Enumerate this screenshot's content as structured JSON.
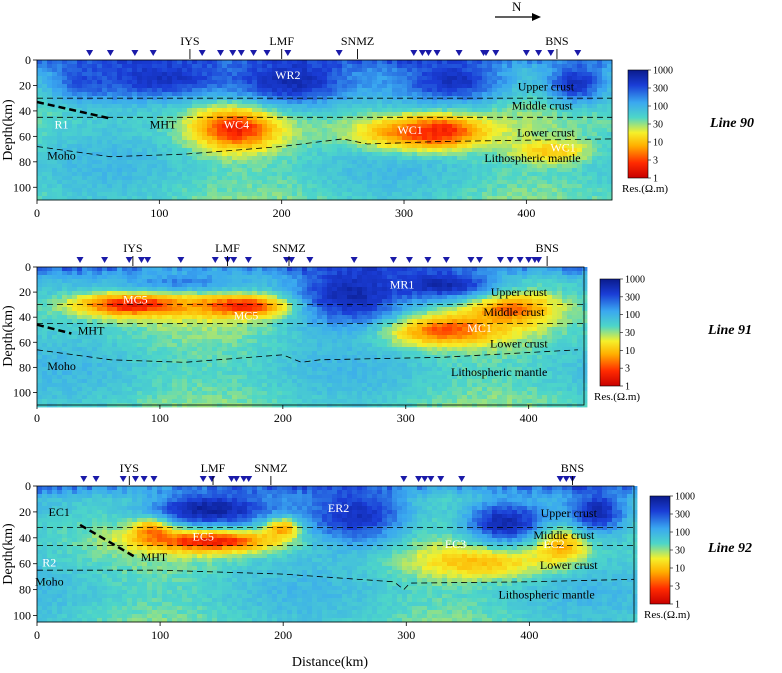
{
  "north_label": "N",
  "x_axis_label": "Distance(km)",
  "y_axis_label": "Depth(km)",
  "colorbar_unit": "Res.(Ω.m)",
  "colorbar_ticks": [
    "1000",
    "300",
    "100",
    "30",
    "10",
    "3",
    "1"
  ],
  "colors": {
    "station_marker": "#1a1aa8",
    "cmap": [
      "#c80000",
      "#ff2a00",
      "#ffb000",
      "#f5f02a",
      "#4dd6c8",
      "#3aa8f0",
      "#1a3dd6",
      "#0a1b8c"
    ]
  },
  "chart_data": [
    {
      "type": "heatmap",
      "title": "Line 90",
      "x_range": [
        0,
        470
      ],
      "y_range": [
        0,
        110
      ],
      "x_ticks": [
        "0",
        "100",
        "200",
        "300",
        "400"
      ],
      "y_ticks": [
        "0",
        "20",
        "40",
        "60",
        "80",
        "100"
      ],
      "stations_km": [
        43,
        60,
        80,
        95,
        135,
        150,
        160,
        167,
        177,
        188,
        205,
        247,
        308,
        315,
        320,
        327,
        345,
        365,
        367,
        375,
        400,
        410,
        420,
        442
      ],
      "boundaries": [
        {
          "name": "upper-middle",
          "points": [
            [
              0,
              30
            ],
            [
              470,
              30
            ]
          ]
        },
        {
          "name": "middle-lower",
          "points": [
            [
              0,
              45
            ],
            [
              470,
              45
            ]
          ]
        },
        {
          "name": "moho",
          "points": [
            [
              0,
              68
            ],
            [
              60,
              76
            ],
            [
              120,
              74
            ],
            [
              200,
              68
            ],
            [
              250,
              62
            ],
            [
              270,
              66
            ],
            [
              330,
              64
            ],
            [
              400,
              63
            ],
            [
              470,
              62
            ]
          ]
        },
        {
          "name": "mht",
          "points": [
            [
              0,
              33
            ],
            [
              60,
              46
            ]
          ]
        }
      ],
      "markers": [
        {
          "label": "IYS",
          "km": 125
        },
        {
          "label": "LMF",
          "km": 200
        },
        {
          "label": "SNMZ",
          "km": 262
        },
        {
          "label": "BNS",
          "km": 425
        }
      ],
      "labels": [
        {
          "text": "WR2",
          "km": 205,
          "depth": 15,
          "color": "#ffffff"
        },
        {
          "text": "R1",
          "km": 20,
          "depth": 54,
          "color": "#ffffff"
        },
        {
          "text": "MHT",
          "km": 103,
          "depth": 54,
          "color": "#000000"
        },
        {
          "text": "WC4",
          "km": 163,
          "depth": 54,
          "color": "#ffffff"
        },
        {
          "text": "WC1",
          "km": 305,
          "depth": 58,
          "color": "#ffffff"
        },
        {
          "text": "WC1",
          "km": 430,
          "depth": 72,
          "color": "#ffffff"
        },
        {
          "text": "Upper crust",
          "km": 416,
          "depth": 24,
          "color": "#000000"
        },
        {
          "text": "Middle crust",
          "km": 413,
          "depth": 39,
          "color": "#000000"
        },
        {
          "text": "Lower crust",
          "km": 416,
          "depth": 60,
          "color": "#000000"
        },
        {
          "text": "Moho",
          "km": 20,
          "depth": 78,
          "color": "#000000"
        },
        {
          "text": "Lithospheric mantle",
          "km": 405,
          "depth": 80,
          "color": "#000000"
        }
      ],
      "anomalies": [
        {
          "km": 163,
          "depth": 53,
          "rx": 38,
          "ry": 20,
          "log": 0.25
        },
        {
          "km": 313,
          "depth": 57,
          "rx": 62,
          "ry": 16,
          "log": 0.55
        },
        {
          "km": 330,
          "depth": 55,
          "rx": 30,
          "ry": 12,
          "log": 0.35
        },
        {
          "km": 420,
          "depth": 72,
          "rx": 34,
          "ry": 10,
          "log": 1.0
        },
        {
          "km": 100,
          "depth": 14,
          "rx": 80,
          "ry": 20,
          "log": 2.7
        },
        {
          "km": 208,
          "depth": 16,
          "rx": 60,
          "ry": 24,
          "log": 2.8
        },
        {
          "km": 340,
          "depth": 16,
          "rx": 55,
          "ry": 22,
          "log": 2.7
        },
        {
          "km": 440,
          "depth": 18,
          "rx": 30,
          "ry": 20,
          "log": 2.7
        },
        {
          "km": 40,
          "depth": 14,
          "rx": 30,
          "ry": 18,
          "log": 2.5
        }
      ]
    },
    {
      "type": "heatmap",
      "title": "Line 91",
      "x_range": [
        0,
        445
      ],
      "y_range": [
        0,
        110
      ],
      "x_ticks": [
        "0",
        "100",
        "200",
        "300",
        "400"
      ],
      "y_ticks": [
        "0",
        "20",
        "40",
        "60",
        "80",
        "100"
      ],
      "stations_km": [
        35,
        55,
        75,
        85,
        90,
        117,
        145,
        155,
        160,
        172,
        203,
        207,
        222,
        258,
        290,
        303,
        318,
        333,
        353,
        360,
        377,
        385,
        393,
        400,
        405,
        408
      ],
      "boundaries": [
        {
          "name": "upper-middle",
          "points": [
            [
              0,
              30
            ],
            [
              445,
              30
            ]
          ]
        },
        {
          "name": "middle-lower",
          "points": [
            [
              0,
              45
            ],
            [
              445,
              45
            ]
          ]
        },
        {
          "name": "moho",
          "points": [
            [
              0,
              66
            ],
            [
              60,
              74
            ],
            [
              120,
              76
            ],
            [
              200,
              70
            ],
            [
              215,
              76
            ],
            [
              230,
              74
            ],
            [
              330,
              72
            ],
            [
              440,
              66
            ]
          ]
        },
        {
          "name": "mht",
          "points": [
            [
              0,
              46
            ],
            [
              28,
              53
            ]
          ]
        }
      ],
      "markers": [
        {
          "label": "IYS",
          "km": 78
        },
        {
          "label": "LMF",
          "km": 155
        },
        {
          "label": "SNMZ",
          "km": 205
        },
        {
          "label": "BNS",
          "km": 415
        }
      ],
      "labels": [
        {
          "text": "MR1",
          "km": 297,
          "depth": 17,
          "color": "#ffffff"
        },
        {
          "text": "MC5",
          "km": 80,
          "depth": 29,
          "color": "#ffffff"
        },
        {
          "text": "MC5",
          "km": 170,
          "depth": 42,
          "color": "#ffffff"
        },
        {
          "text": "MC1",
          "km": 360,
          "depth": 52,
          "color": "#ffffff"
        },
        {
          "text": "MHT",
          "km": 44,
          "depth": 54,
          "color": "#000000"
        },
        {
          "text": "Upper crust",
          "km": 392,
          "depth": 23,
          "color": "#000000"
        },
        {
          "text": "Middle crust",
          "km": 388,
          "depth": 39,
          "color": "#000000"
        },
        {
          "text": "Lower crust",
          "km": 392,
          "depth": 64,
          "color": "#000000"
        },
        {
          "text": "Moho",
          "km": 20,
          "depth": 82,
          "color": "#000000"
        },
        {
          "text": "Lithospheric mantle",
          "km": 376,
          "depth": 87,
          "color": "#000000"
        }
      ],
      "anomalies": [
        {
          "km": 78,
          "depth": 30,
          "rx": 55,
          "ry": 11,
          "log": 0.25
        },
        {
          "km": 170,
          "depth": 31,
          "rx": 48,
          "ry": 10,
          "log": 0.2
        },
        {
          "km": 330,
          "depth": 50,
          "rx": 55,
          "ry": 14,
          "log": 0.45
        },
        {
          "km": 385,
          "depth": 33,
          "rx": 40,
          "ry": 14,
          "log": 0.55
        },
        {
          "km": 255,
          "depth": 22,
          "rx": 55,
          "ry": 30,
          "log": 2.8
        },
        {
          "km": 330,
          "depth": 14,
          "rx": 55,
          "ry": 14,
          "log": 2.8
        },
        {
          "km": 120,
          "depth": 12,
          "rx": 70,
          "ry": 9,
          "log": 2.3
        }
      ]
    },
    {
      "type": "heatmap",
      "title": "Line 92",
      "x_range": [
        0,
        485
      ],
      "y_range": [
        0,
        105
      ],
      "x_ticks": [
        "0",
        "100",
        "200",
        "300",
        "400"
      ],
      "y_ticks": [
        "0",
        "20",
        "40",
        "60",
        "80",
        "100"
      ],
      "stations_km": [
        38,
        48,
        70,
        80,
        87,
        95,
        135,
        142,
        158,
        162,
        168,
        172,
        298,
        310,
        315,
        320,
        328,
        345,
        425,
        430,
        435
      ],
      "boundaries": [
        {
          "name": "upper-middle",
          "points": [
            [
              0,
              32
            ],
            [
              485,
              32
            ]
          ]
        },
        {
          "name": "middle-lower",
          "points": [
            [
              0,
              46
            ],
            [
              485,
              46
            ]
          ]
        },
        {
          "name": "moho",
          "points": [
            [
              0,
              65
            ],
            [
              100,
              65
            ],
            [
              200,
              68
            ],
            [
              290,
              74
            ],
            [
              298,
              80
            ],
            [
              303,
              75
            ],
            [
              400,
              74
            ],
            [
              485,
              72
            ]
          ]
        },
        {
          "name": "mht",
          "points": [
            [
              35,
              30
            ],
            [
              80,
              55
            ]
          ]
        }
      ],
      "markers": [
        {
          "label": "IYS",
          "km": 75
        },
        {
          "label": "LMF",
          "km": 143
        },
        {
          "label": "SNMZ",
          "km": 190
        },
        {
          "label": "BNS",
          "km": 435
        }
      ],
      "labels": [
        {
          "text": "ER2",
          "km": 245,
          "depth": 20,
          "color": "#ffffff"
        },
        {
          "text": "EC1",
          "km": 18,
          "depth": 23,
          "color": "#000000"
        },
        {
          "text": "EC5",
          "km": 135,
          "depth": 42,
          "color": "#ffffff"
        },
        {
          "text": "EC3",
          "km": 340,
          "depth": 48,
          "color": "#ffffff"
        },
        {
          "text": "EC2",
          "km": 420,
          "depth": 48,
          "color": "#ffffff"
        },
        {
          "text": "MHT",
          "km": 95,
          "depth": 58,
          "color": "#000000"
        },
        {
          "text": "R2",
          "km": 10,
          "depth": 62,
          "color": "#ffffff"
        },
        {
          "text": "Moho",
          "km": 10,
          "depth": 77,
          "color": "#000000"
        },
        {
          "text": "Upper crust",
          "km": 432,
          "depth": 24,
          "color": "#000000"
        },
        {
          "text": "Middle crust",
          "km": 428,
          "depth": 41,
          "color": "#000000"
        },
        {
          "text": "Lower crust",
          "km": 432,
          "depth": 64,
          "color": "#000000"
        },
        {
          "text": "Lithospheric mantle",
          "km": 414,
          "depth": 87,
          "color": "#000000"
        }
      ],
      "anomalies": [
        {
          "km": 140,
          "depth": 42,
          "rx": 62,
          "ry": 10,
          "log": 0.15
        },
        {
          "km": 95,
          "depth": 33,
          "rx": 18,
          "ry": 10,
          "log": 0.3
        },
        {
          "km": 200,
          "depth": 32,
          "rx": 18,
          "ry": 9,
          "log": 0.3
        },
        {
          "km": 360,
          "depth": 58,
          "rx": 60,
          "ry": 14,
          "log": 0.9
        },
        {
          "km": 425,
          "depth": 45,
          "rx": 25,
          "ry": 16,
          "log": 0.7
        },
        {
          "km": 140,
          "depth": 18,
          "rx": 60,
          "ry": 16,
          "log": 2.9
        },
        {
          "km": 260,
          "depth": 22,
          "rx": 50,
          "ry": 28,
          "log": 2.7
        },
        {
          "km": 380,
          "depth": 28,
          "rx": 40,
          "ry": 20,
          "log": 2.8
        },
        {
          "km": 455,
          "depth": 20,
          "rx": 25,
          "ry": 18,
          "log": 2.8
        }
      ]
    }
  ]
}
